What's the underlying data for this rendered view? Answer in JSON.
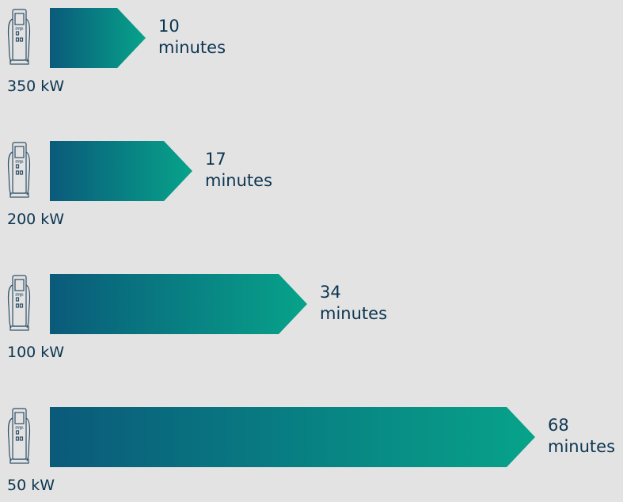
{
  "chart_data": {
    "type": "bar",
    "orientation": "horizontal",
    "categories": [
      "350 kW",
      "200 kW",
      "100 kW",
      "50 kW"
    ],
    "values": [
      10,
      17,
      34,
      68
    ],
    "value_unit": "minutes",
    "icon": "ev-charger-icon",
    "colors": {
      "gradient_start": "#0a5a7a",
      "gradient_end": "#07a38a",
      "text": "#0b3550",
      "background": "#e3e3e3"
    }
  }
}
